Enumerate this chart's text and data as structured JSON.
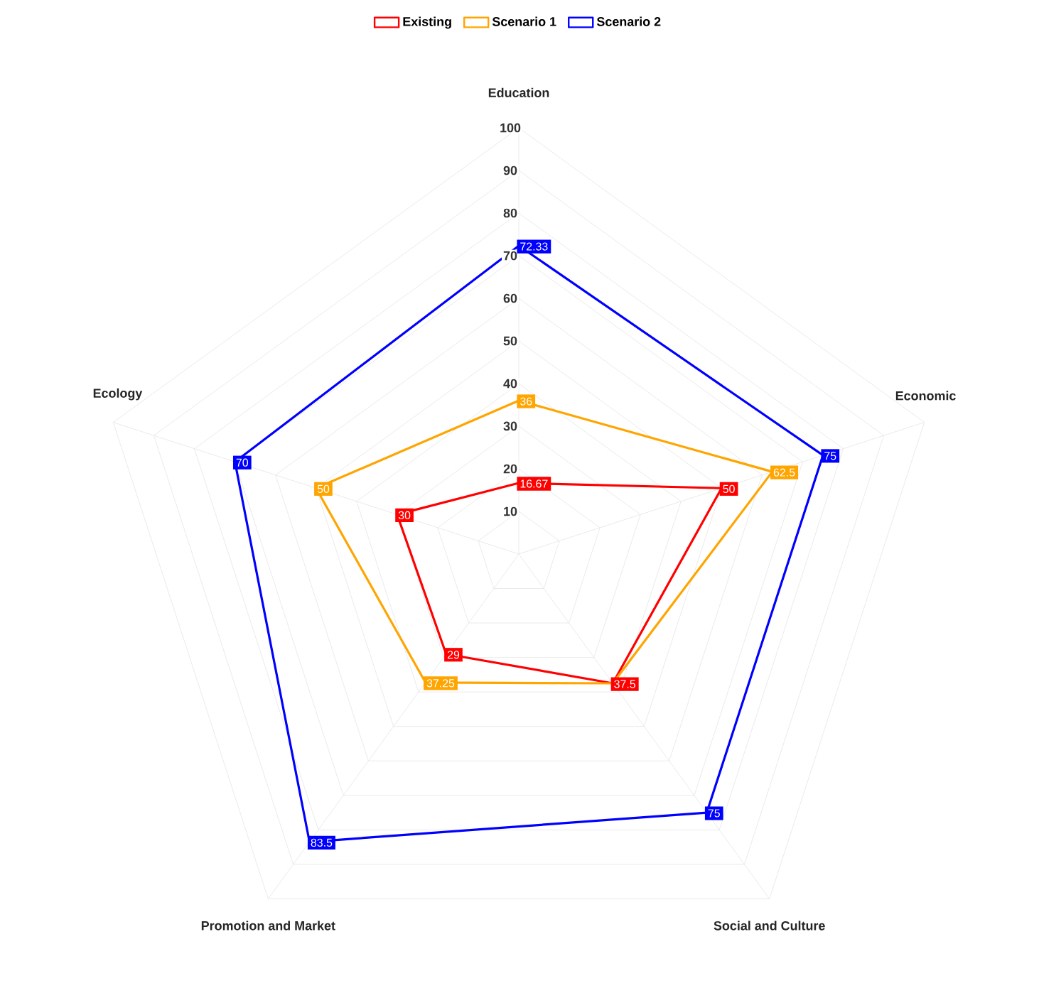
{
  "chart_data": {
    "type": "radar",
    "categories": [
      "Education",
      "Economic",
      "Social and Culture",
      "Promotion and Market",
      "Ecology"
    ],
    "series": [
      {
        "name": "Existing",
        "color": "#ff0000",
        "values": [
          16.67,
          50,
          37.5,
          29,
          30
        ],
        "value_labels": [
          "16.67",
          "50",
          "37.5",
          "29",
          "30"
        ]
      },
      {
        "name": "Scenario 1",
        "color": "#ffa500",
        "values": [
          36,
          62.5,
          37.5,
          37.25,
          50
        ],
        "value_labels": [
          "36",
          "62.5",
          null,
          "37.25",
          "50"
        ]
      },
      {
        "name": "Scenario 2",
        "color": "#0000ff",
        "values": [
          72.33,
          75,
          75,
          83.5,
          70
        ],
        "value_labels": [
          "72.33",
          "75",
          "75",
          "83.5",
          "70"
        ]
      }
    ],
    "ylim": [
      0,
      100
    ],
    "yticks": [
      10,
      20,
      30,
      40,
      50,
      60,
      70,
      80,
      90,
      100
    ],
    "legend": "top",
    "grid": true
  }
}
